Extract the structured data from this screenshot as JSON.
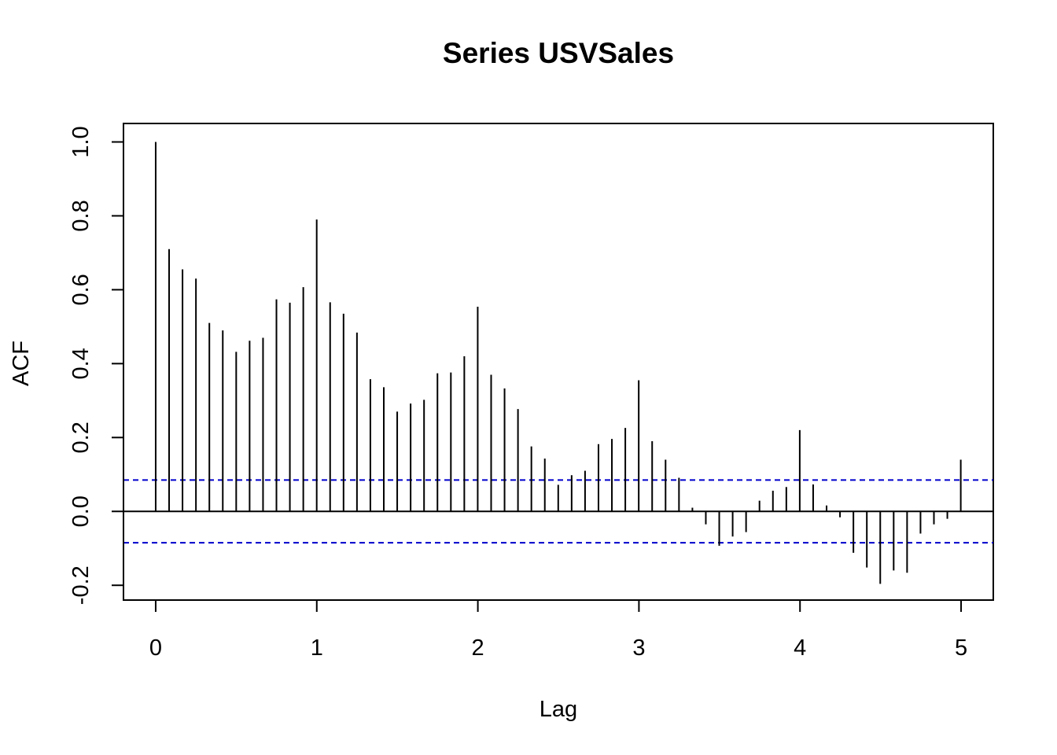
{
  "chart_data": {
    "type": "bar",
    "title": "Series  USVSales",
    "xlabel": "Lag",
    "ylabel": "ACF",
    "xlim": [
      -0.2,
      5.2
    ],
    "ylim": [
      -0.24,
      1.05
    ],
    "x_ticks": [
      "0",
      "1",
      "2",
      "3",
      "4",
      "5"
    ],
    "y_ticks": [
      "-0.2",
      "0.0",
      "0.2",
      "0.4",
      "0.6",
      "0.8",
      "1.0"
    ],
    "confidence_bound": 0.085,
    "colors": {
      "bars": "#000000",
      "ci_lines": "#0000cc",
      "axes": "#000000"
    },
    "series": [
      {
        "lag_step": 0.0833,
        "values": [
          1.0,
          0.71,
          0.655,
          0.63,
          0.51,
          0.49,
          0.432,
          0.462,
          0.47,
          0.574,
          0.565,
          0.607,
          0.79,
          0.566,
          0.535,
          0.484,
          0.358,
          0.336,
          0.27,
          0.292,
          0.302,
          0.374,
          0.376,
          0.42,
          0.554,
          0.37,
          0.333,
          0.277,
          0.176,
          0.143,
          0.072,
          0.098,
          0.11,
          0.182,
          0.196,
          0.226,
          0.355,
          0.19,
          0.14,
          0.091,
          0.01,
          -0.035,
          -0.093,
          -0.068,
          -0.056,
          0.029,
          0.056,
          0.066,
          0.22,
          0.073,
          0.016,
          -0.016,
          -0.112,
          -0.152,
          -0.196,
          -0.16,
          -0.166,
          -0.06,
          -0.035,
          -0.02,
          0.14
        ]
      }
    ]
  }
}
